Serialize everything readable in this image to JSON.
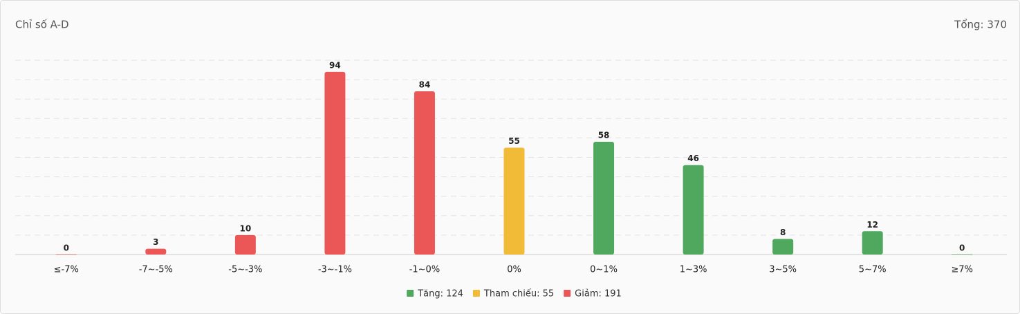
{
  "chart_data": {
    "type": "bar",
    "title": "Chỉ số A-D",
    "total_label": "Tổng: 370",
    "categories": [
      "≤-7%",
      "-7~-5%",
      "-5~-3%",
      "-3~-1%",
      "-1~0%",
      "0%",
      "0~1%",
      "1~3%",
      "3~5%",
      "5~7%",
      "≥7%"
    ],
    "values": [
      0,
      3,
      10,
      94,
      84,
      55,
      58,
      46,
      8,
      12,
      0
    ],
    "colors": [
      "#eb5757",
      "#eb5757",
      "#eb5757",
      "#eb5757",
      "#eb5757",
      "#f2bb37",
      "#4fa85e",
      "#4fa85e",
      "#4fa85e",
      "#4fa85e",
      "#4fa85e"
    ],
    "ylim": [
      0,
      100
    ],
    "yticks": [
      0,
      10,
      20,
      30,
      40,
      50,
      60,
      70,
      80,
      90,
      100
    ],
    "grid": true,
    "legend": [
      {
        "label": "Tăng: 124",
        "color": "#4fa85e"
      },
      {
        "label": "Tham chiếu: 55",
        "color": "#f2bb37"
      },
      {
        "label": "Giảm: 191",
        "color": "#eb5757"
      }
    ]
  }
}
